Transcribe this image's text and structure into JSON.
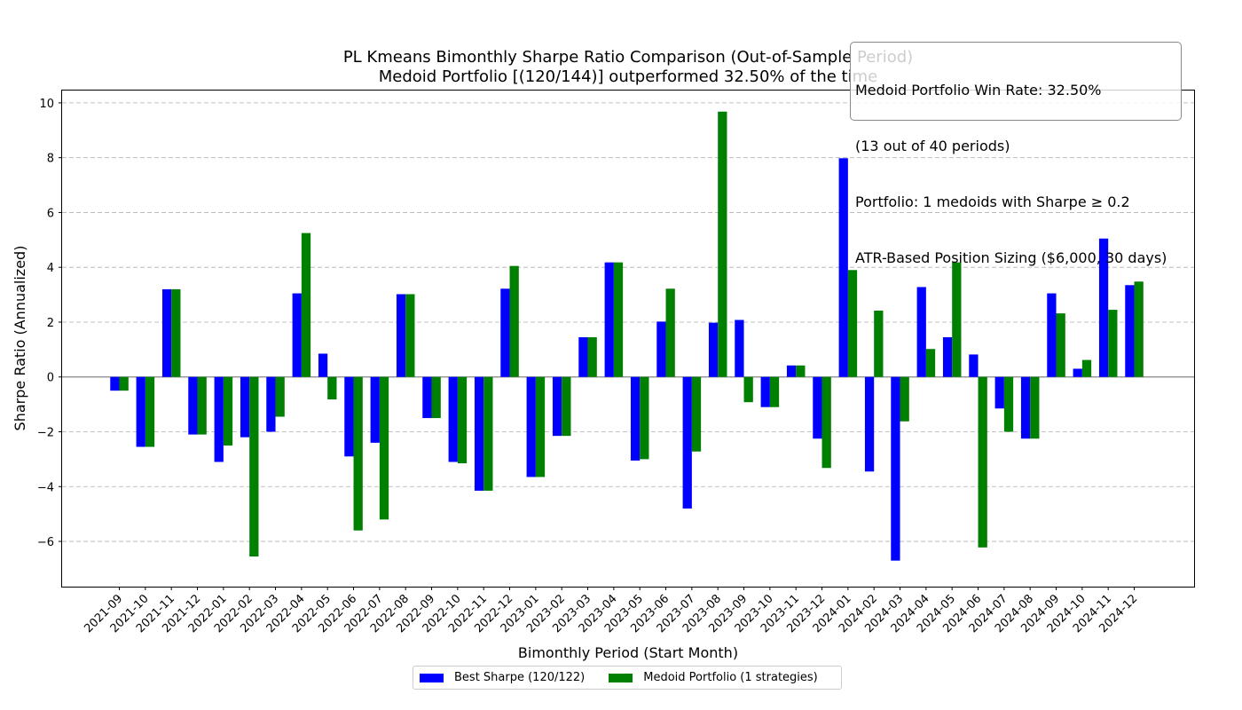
{
  "chart_data": {
    "type": "bar",
    "title": "PL Kmeans Bimonthly Sharpe Ratio Comparison (Out-of-Sample Period)",
    "subtitle": "Medoid Portfolio [(120/144)] outperformed 32.50% of the time",
    "xlabel": "Bimonthly Period (Start Month)",
    "ylabel": "Sharpe Ratio (Annualized)",
    "ylim": [
      -7.65,
      10.45
    ],
    "yticks": [
      -6,
      -4,
      -2,
      0,
      2,
      4,
      6,
      8,
      10
    ],
    "grid": "y-dashed",
    "legend_position": "bottom-center",
    "categories": [
      "2021-09",
      "2021-10",
      "2021-11",
      "2021-12",
      "2022-01",
      "2022-02",
      "2022-03",
      "2022-04",
      "2022-05",
      "2022-06",
      "2022-07",
      "2022-08",
      "2022-09",
      "2022-10",
      "2022-11",
      "2022-12",
      "2023-01",
      "2023-02",
      "2023-03",
      "2023-04",
      "2023-05",
      "2023-06",
      "2023-07",
      "2023-08",
      "2023-09",
      "2023-10",
      "2023-11",
      "2023-12",
      "2024-01",
      "2024-02",
      "2024-03",
      "2024-04",
      "2024-05",
      "2024-06",
      "2024-07",
      "2024-08",
      "2024-09",
      "2024-10",
      "2024-11",
      "2024-12"
    ],
    "series": [
      {
        "name": "Best Sharpe (120/122)",
        "color": "#0000ff",
        "values": [
          -0.5,
          -2.55,
          3.2,
          -2.1,
          -3.1,
          -2.2,
          -2.0,
          3.05,
          0.85,
          -2.9,
          -2.4,
          3.02,
          -1.5,
          -3.1,
          -4.15,
          3.22,
          -3.65,
          -2.15,
          1.45,
          4.18,
          -3.05,
          2.02,
          -4.8,
          1.98,
          2.08,
          -1.1,
          0.42,
          -2.25,
          7.98,
          -3.45,
          -6.7,
          3.28,
          1.45,
          0.82,
          -1.15,
          -2.25,
          3.05,
          0.3,
          5.05,
          3.35
        ]
      },
      {
        "name": "Medoid Portfolio (1 strategies)",
        "color": "#008000",
        "values": [
          -0.5,
          -2.55,
          3.2,
          -2.1,
          -2.5,
          -6.55,
          -1.45,
          5.25,
          -0.82,
          -5.6,
          -5.2,
          3.02,
          -1.5,
          -3.15,
          -4.15,
          4.05,
          -3.65,
          -2.15,
          1.45,
          4.18,
          -3.0,
          3.22,
          -2.72,
          9.68,
          -0.92,
          -1.1,
          0.42,
          -3.32,
          3.9,
          2.42,
          -1.62,
          1.02,
          4.18,
          -6.22,
          -2.0,
          -2.25,
          2.32,
          0.62,
          2.45,
          3.48
        ]
      }
    ],
    "annotation": [
      "Medoid Portfolio Win Rate: 32.50%",
      "(13 out of 40 periods)",
      "Portfolio: 1 medoids with Sharpe ≥ 0.2",
      "ATR-Based Position Sizing ($6,000, 30 days)"
    ]
  }
}
